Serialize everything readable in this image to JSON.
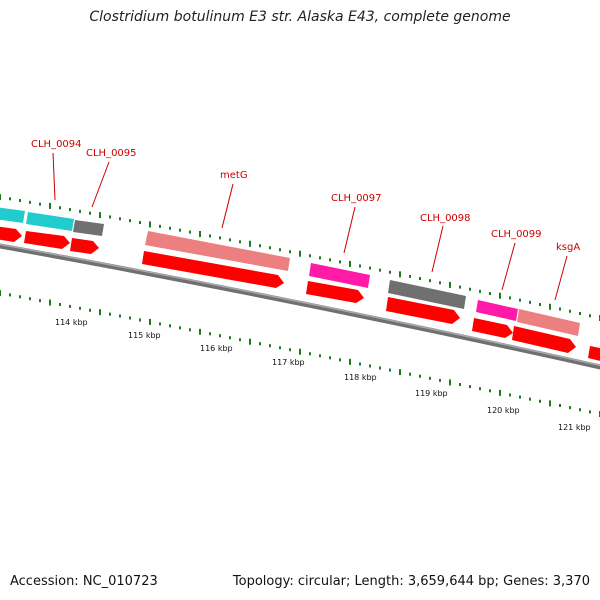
{
  "title": "Clostridium botulinum E3 str. Alaska E43, complete genome",
  "accession_label": "Accession: NC_010723",
  "topology_label": "Topology: circular; Length: 3,659,644 bp; Genes: 3,370",
  "colors": {
    "backbone": "#808080",
    "tick": "#1f7a1f",
    "cds_arrow": "#ff0000",
    "label_text": "#cc0000",
    "gene_cyan": "#22cccc",
    "gene_gray": "#707070",
    "gene_salmon": "#ec8080",
    "gene_magenta": "#ff1aa8"
  },
  "scale_labels": [
    "114 kbp",
    "115 kbp",
    "116 kbp",
    "117 kbp",
    "118 kbp",
    "119 kbp",
    "120 kbp",
    "121 kbp"
  ],
  "gene_labels": [
    "CLH_0094",
    "CLH_0095",
    "metG",
    "CLH_0097",
    "CLH_0098",
    "CLH_0099",
    "ksgA"
  ]
}
